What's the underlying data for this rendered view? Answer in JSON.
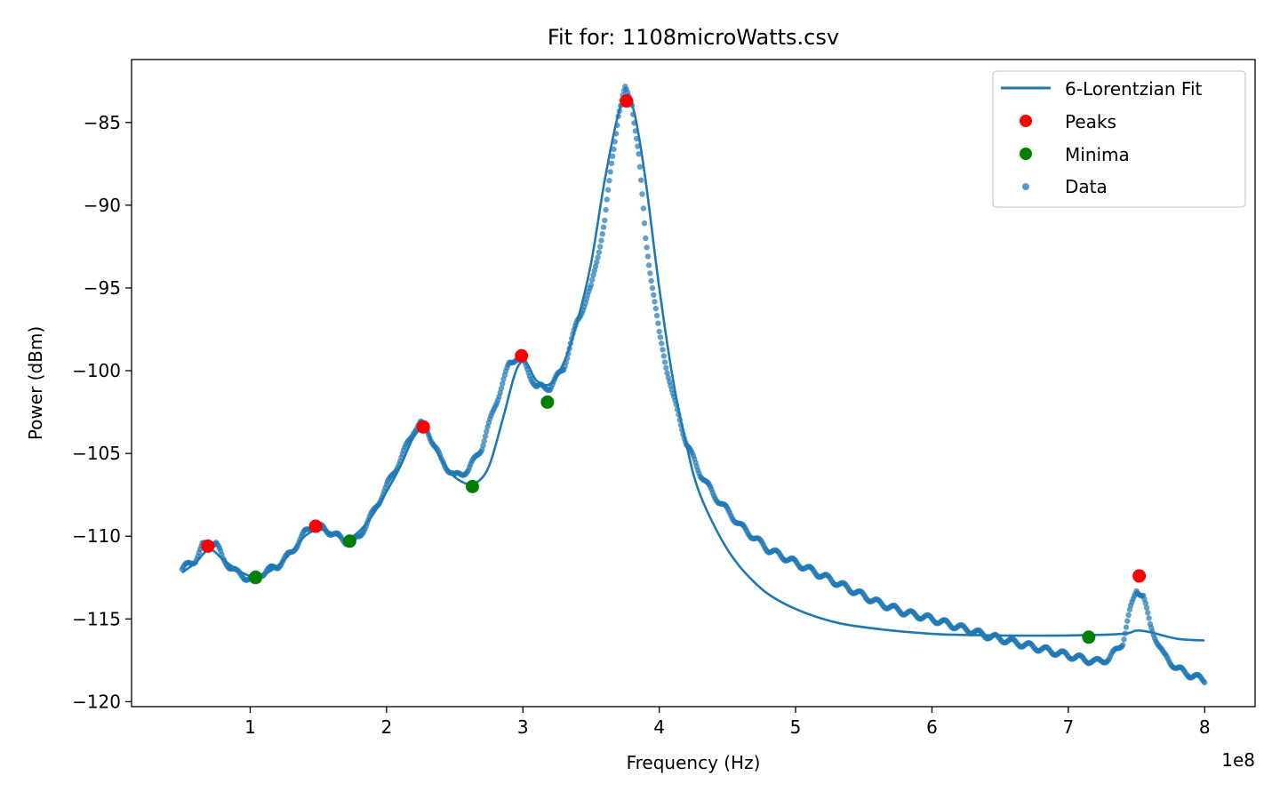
{
  "chart_data": {
    "type": "scatter",
    "title": "Fit for: 1108microWatts.csv",
    "xlabel": "Frequency (Hz)",
    "ylabel": "Power (dBm)",
    "x_offset_text": "1e8",
    "xlim": [
      0.13,
      8.37
    ],
    "ylim": [
      -120.3,
      -81.2
    ],
    "x_ticks": [
      1,
      2,
      3,
      4,
      5,
      6,
      7,
      8
    ],
    "x_tick_labels": [
      "1",
      "2",
      "3",
      "4",
      "5",
      "6",
      "7",
      "8"
    ],
    "y_ticks": [
      -85,
      -90,
      -95,
      -100,
      -105,
      -110,
      -115,
      -120
    ],
    "y_tick_labels": [
      "−85",
      "−90",
      "−95",
      "−100",
      "−105",
      "−110",
      "−115",
      "−120"
    ],
    "grid": false,
    "legend_position": "top-right",
    "colors": {
      "fit": "#1f77b4",
      "data": "#1f77b4",
      "peaks": "#ff0000",
      "minima": "#008000"
    },
    "series": [
      {
        "name": "6-Lorentzian Fit",
        "kind": "line",
        "x": [
          0.5,
          0.6,
          0.7,
          0.8,
          0.9,
          1.0,
          1.1,
          1.2,
          1.3,
          1.4,
          1.5,
          1.6,
          1.7,
          1.8,
          1.9,
          2.0,
          2.1,
          2.2,
          2.28,
          2.35,
          2.45,
          2.55,
          2.65,
          2.75,
          2.85,
          2.95,
          3.02,
          3.1,
          3.2,
          3.3,
          3.4,
          3.5,
          3.6,
          3.7,
          3.76,
          3.82,
          3.9,
          4.0,
          4.1,
          4.2,
          4.3,
          4.5,
          4.7,
          4.9,
          5.2,
          5.5,
          6.0,
          6.5,
          7.0,
          7.4,
          7.5,
          7.6,
          7.8,
          8.0
        ],
        "y": [
          -112.2,
          -111.6,
          -110.8,
          -111.4,
          -112.0,
          -112.4,
          -112.3,
          -111.8,
          -111.0,
          -110.0,
          -109.6,
          -109.8,
          -110.2,
          -109.7,
          -108.7,
          -107.3,
          -105.8,
          -104.0,
          -103.5,
          -104.6,
          -106.0,
          -106.7,
          -106.8,
          -105.8,
          -103.0,
          -100.0,
          -99.5,
          -100.6,
          -100.8,
          -99.5,
          -97.0,
          -93.5,
          -88.5,
          -84.5,
          -83.5,
          -84.5,
          -88.5,
          -95.0,
          -100.5,
          -104.5,
          -107.5,
          -110.8,
          -112.8,
          -114.0,
          -115.0,
          -115.5,
          -115.9,
          -116.0,
          -116.0,
          -115.9,
          -115.7,
          -115.8,
          -116.2,
          -116.3
        ]
      },
      {
        "name": "Data",
        "kind": "scatter",
        "x": [
          0.5,
          0.6,
          0.65,
          0.7,
          0.75,
          0.8,
          0.9,
          1.0,
          1.05,
          1.1,
          1.2,
          1.3,
          1.4,
          1.45,
          1.5,
          1.55,
          1.6,
          1.7,
          1.75,
          1.8,
          1.9,
          2.0,
          2.1,
          2.2,
          2.25,
          2.3,
          2.4,
          2.5,
          2.6,
          2.7,
          2.8,
          2.9,
          2.95,
          3.0,
          3.1,
          3.2,
          3.3,
          3.4,
          3.5,
          3.6,
          3.65,
          3.7,
          3.75,
          3.8,
          3.85,
          3.9,
          4.0,
          4.1,
          4.2,
          4.3,
          4.4,
          4.6,
          4.8,
          5.0,
          5.2,
          5.4,
          5.6,
          5.8,
          6.0,
          6.2,
          6.4,
          6.6,
          6.8,
          7.0,
          7.2,
          7.3,
          7.4,
          7.45,
          7.5,
          7.55,
          7.6,
          7.7,
          7.8,
          7.9,
          8.0
        ],
        "y": [
          -112.0,
          -111.4,
          -110.6,
          -110.4,
          -110.4,
          -111.4,
          -112.2,
          -112.6,
          -112.3,
          -112.2,
          -111.8,
          -111.0,
          -109.8,
          -109.4,
          -109.4,
          -109.6,
          -109.8,
          -110.3,
          -110.4,
          -110.0,
          -108.6,
          -107.0,
          -105.4,
          -103.6,
          -103.2,
          -103.6,
          -105.4,
          -106.4,
          -106.0,
          -104.6,
          -102.0,
          -99.6,
          -99.2,
          -99.4,
          -101.0,
          -101.0,
          -99.8,
          -97.0,
          -95.0,
          -91.0,
          -87.5,
          -84.5,
          -83.0,
          -83.8,
          -87.0,
          -92.0,
          -97.8,
          -101.5,
          -104.4,
          -106.2,
          -107.5,
          -109.4,
          -110.8,
          -111.6,
          -112.4,
          -113.2,
          -114.0,
          -114.6,
          -115.0,
          -115.5,
          -116.0,
          -116.4,
          -116.8,
          -117.2,
          -117.6,
          -117.4,
          -116.4,
          -114.6,
          -113.2,
          -113.6,
          -115.4,
          -117.2,
          -118.0,
          -118.4,
          -118.7
        ]
      },
      {
        "name": "Peaks",
        "kind": "marker",
        "x": [
          0.69,
          1.48,
          2.27,
          2.99,
          3.76,
          7.52
        ],
        "y": [
          -110.6,
          -109.4,
          -103.4,
          -99.1,
          -83.7,
          -112.4
        ]
      },
      {
        "name": "Minima",
        "kind": "marker",
        "x": [
          1.04,
          1.73,
          2.63,
          3.18,
          7.15
        ],
        "y": [
          -112.5,
          -110.3,
          -107.0,
          -101.9,
          -116.1
        ]
      }
    ],
    "legend": [
      "6-Lorentzian Fit",
      "Peaks",
      "Minima",
      "Data"
    ]
  }
}
